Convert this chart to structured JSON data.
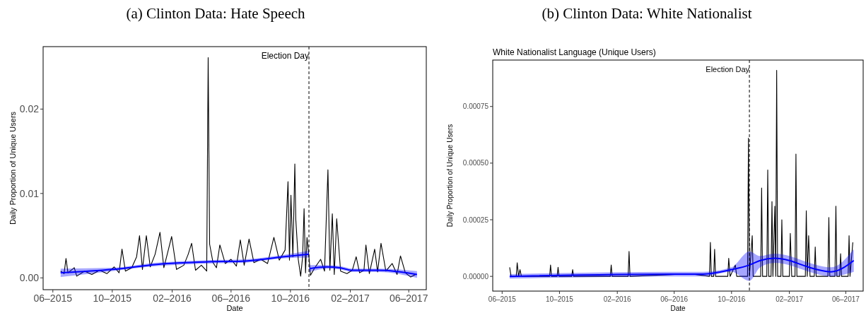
{
  "chart_data": [
    {
      "type": "line",
      "title": "(a) Clinton Data: Hate Speech",
      "xlabel": "Date",
      "ylabel": "Daily Proportion of Unique Users",
      "xlim": [
        "2015-05-12",
        "2017-07-07"
      ],
      "ylim": [
        -0.0014,
        0.0274
      ],
      "xticks": [
        {
          "value": "2015-06-01",
          "label": "06–2015"
        },
        {
          "value": "2015-10-01",
          "label": "10–2015"
        },
        {
          "value": "2016-02-01",
          "label": "02–2016"
        },
        {
          "value": "2016-06-01",
          "label": "06–2016"
        },
        {
          "value": "2016-10-01",
          "label": "10–2016"
        },
        {
          "value": "2017-02-01",
          "label": "02–2017"
        },
        {
          "value": "2017-06-01",
          "label": "06–2017"
        }
      ],
      "yticks": [
        {
          "value": 0,
          "label": "0.00"
        },
        {
          "value": 0.01,
          "label": "0.01"
        },
        {
          "value": 0.02,
          "label": "0.02"
        }
      ],
      "grid": false,
      "ref_lines": [
        {
          "axis": "x",
          "value": "2016-11-08",
          "label": "Election Day",
          "line_style": "dashed",
          "color": "#000000"
        }
      ],
      "series": [
        {
          "color": "#000000",
          "x": [
            "2015-06-17",
            "2015-06-24",
            "2015-06-28",
            "2015-07-02",
            "2015-07-15",
            "2015-07-20",
            "2015-08-05",
            "2015-08-20",
            "2015-09-05",
            "2015-09-20",
            "2015-10-05",
            "2015-10-15",
            "2015-10-21",
            "2015-10-28",
            "2015-11-10",
            "2015-11-20",
            "2015-11-26",
            "2015-12-02",
            "2015-12-10",
            "2015-12-18",
            "2015-12-28",
            "2016-01-07",
            "2016-01-15",
            "2016-01-25",
            "2016-01-31",
            "2016-02-10",
            "2016-02-25",
            "2016-03-05",
            "2016-03-12",
            "2016-03-20",
            "2016-04-01",
            "2016-04-12",
            "2016-04-15",
            "2016-04-18",
            "2016-04-25",
            "2016-05-02",
            "2016-05-09",
            "2016-05-20",
            "2016-06-01",
            "2016-06-12",
            "2016-06-20",
            "2016-06-28",
            "2016-07-08",
            "2016-07-18",
            "2016-08-01",
            "2016-08-15",
            "2016-08-28",
            "2016-09-08",
            "2016-09-20",
            "2016-09-26",
            "2016-09-29",
            "2016-10-02",
            "2016-10-06",
            "2016-10-10",
            "2016-10-12",
            "2016-10-17",
            "2016-10-22",
            "2016-10-26",
            "2016-10-29",
            "2016-11-01",
            "2016-11-04",
            "2016-11-08",
            "2016-11-11",
            "2016-11-20",
            "2016-12-02",
            "2016-12-10",
            "2016-12-17",
            "2016-12-21",
            "2016-12-26",
            "2016-12-30",
            "2017-01-04",
            "2017-01-12",
            "2017-01-25",
            "2017-02-05",
            "2017-02-13",
            "2017-02-20",
            "2017-03-01",
            "2017-03-05",
            "2017-03-12",
            "2017-03-23",
            "2017-03-29",
            "2017-04-05",
            "2017-04-15",
            "2017-04-28",
            "2017-05-08",
            "2017-05-15",
            "2017-05-25",
            "2017-06-05",
            "2017-06-15"
          ],
          "values": [
            0.0008,
            0.0005,
            0.0023,
            0.0006,
            0.0012,
            0.0002,
            0.0008,
            0.0004,
            0.0009,
            0.0005,
            0.0013,
            0.0006,
            0.0034,
            0.0008,
            0.0012,
            0.0025,
            0.005,
            0.001,
            0.005,
            0.0013,
            0.0028,
            0.0054,
            0.0012,
            0.0035,
            0.0049,
            0.001,
            0.0015,
            0.0028,
            0.0041,
            0.0009,
            0.0015,
            0.0008,
            0.0261,
            0.004,
            0.0018,
            0.0012,
            0.0039,
            0.0017,
            0.0022,
            0.0014,
            0.0045,
            0.0015,
            0.0046,
            0.0018,
            0.0022,
            0.0017,
            0.0048,
            0.0021,
            0.0033,
            0.0114,
            0.0021,
            0.0098,
            0.0025,
            0.0135,
            0.0069,
            0.0022,
            0.0002,
            0.0025,
            0.0082,
            0.0006,
            0.0048,
            0.0025,
            0.0003,
            0.0012,
            0.0022,
            0.0008,
            0.0128,
            0.0009,
            0.0076,
            0.0004,
            0.007,
            0.0008,
            0.0005,
            0.0009,
            0.0025,
            0.0006,
            0.0009,
            0.0039,
            0.0005,
            0.0034,
            0.0007,
            0.0041,
            0.0008,
            0.0017,
            0.0004,
            0.0026,
            0.0006,
            0.0001,
            0.0004
          ]
        },
        {
          "color": "#0000ff",
          "x": [
            "2015-06-17",
            "2015-10-01",
            "2016-01-01",
            "2016-04-15",
            "2016-07-01",
            "2016-09-15",
            "2016-11-08"
          ],
          "values": [
            0.0006,
            0.001,
            0.0016,
            0.0019,
            0.002,
            0.0025,
            0.0028
          ],
          "lower": [
            0.0001,
            0.0008,
            0.0014,
            0.0017,
            0.0018,
            0.0023,
            0.0024
          ],
          "upper": [
            0.0011,
            0.0012,
            0.0018,
            0.0021,
            0.0022,
            0.0027,
            0.0032
          ]
        },
        {
          "color": "#0000ff",
          "x": [
            "2016-11-09",
            "2016-12-15",
            "2017-01-10",
            "2017-02-05",
            "2017-04-01",
            "2017-06-18"
          ],
          "values": [
            0.0011,
            0.0013,
            0.0012,
            0.0009,
            0.0009,
            0.0004
          ],
          "lower": [
            0.0007,
            0.0011,
            0.001,
            0.0007,
            0.0007,
            0.0
          ],
          "upper": [
            0.0015,
            0.0015,
            0.0014,
            0.0011,
            0.0011,
            0.0008
          ]
        }
      ]
    },
    {
      "type": "line",
      "title": "(b) Clinton Data: White Nationalist",
      "subtitle": "White Nationalist Language (Unique Users)",
      "xlabel": "Date",
      "ylabel": "Daily Proportion of Unique Users",
      "xlim": [
        "2015-05-12",
        "2017-07-08"
      ],
      "ylim": [
        -6.5e-05,
        0.000955
      ],
      "xticks": [
        {
          "value": "2015-06-01",
          "label": "06–2015"
        },
        {
          "value": "2015-10-01",
          "label": "10–2015"
        },
        {
          "value": "2016-02-01",
          "label": "02–2016"
        },
        {
          "value": "2016-06-01",
          "label": "06–2016"
        },
        {
          "value": "2016-10-01",
          "label": "10–2016"
        },
        {
          "value": "2017-02-01",
          "label": "02–2017"
        },
        {
          "value": "2017-06-01",
          "label": "06–2017"
        }
      ],
      "yticks": [
        {
          "value": 0,
          "label": "0.00000"
        },
        {
          "value": 0.00025,
          "label": "0.00025"
        },
        {
          "value": 0.0005,
          "label": "0.00050"
        },
        {
          "value": 0.00075,
          "label": "0.00075"
        }
      ],
      "grid": false,
      "ref_lines": [
        {
          "axis": "x",
          "value": "2016-11-08",
          "label": "Election Day",
          "line_style": "dashed",
          "color": "#000000"
        }
      ],
      "series": [
        {
          "color": "#000000",
          "x": [
            "2015-06-17",
            "2015-06-20",
            "2015-07-01",
            "2015-07-03",
            "2015-07-06",
            "2015-07-09",
            "2015-07-12",
            "2015-09-10",
            "2015-09-12",
            "2015-09-14",
            "2015-09-26",
            "2015-09-28",
            "2015-09-30",
            "2015-10-27",
            "2015-10-29",
            "2015-10-31",
            "2016-01-17",
            "2016-01-19",
            "2016-01-21",
            "2016-02-24",
            "2016-02-26",
            "2016-02-28",
            "2016-06-20",
            "2016-07-10",
            "2016-08-15",
            "2016-08-17",
            "2016-08-19",
            "2016-08-24",
            "2016-08-26",
            "2016-08-28",
            "2016-09-23",
            "2016-09-25",
            "2016-09-28",
            "2016-10-09",
            "2016-10-12",
            "2016-11-04",
            "2016-11-06",
            "2016-11-08",
            "2016-11-14",
            "2016-11-16",
            "2016-12-02",
            "2016-12-04",
            "2016-12-06",
            "2016-12-15",
            "2016-12-17",
            "2016-12-19",
            "2016-12-24",
            "2016-12-26",
            "2016-12-28",
            "2017-01-01",
            "2017-01-03",
            "2017-01-05",
            "2017-01-07",
            "2017-01-14",
            "2017-01-16",
            "2017-01-18",
            "2017-02-01",
            "2017-02-03",
            "2017-02-06",
            "2017-02-13",
            "2017-02-15",
            "2017-02-17",
            "2017-03-07",
            "2017-03-09",
            "2017-03-11",
            "2017-03-14",
            "2017-03-17",
            "2017-03-26",
            "2017-03-28",
            "2017-03-30",
            "2017-04-24",
            "2017-04-26",
            "2017-04-28",
            "2017-05-09",
            "2017-05-11",
            "2017-05-13",
            "2017-05-19",
            "2017-05-21",
            "2017-05-23",
            "2017-06-06",
            "2017-06-08",
            "2017-06-10",
            "2017-06-16"
          ],
          "values": [
            4e-05,
            0,
            0,
            6e-05,
            0,
            3e-05,
            0,
            0,
            5e-05,
            0,
            0,
            4e-05,
            0,
            0,
            3e-05,
            0,
            0,
            5e-05,
            0,
            0,
            0.00011,
            0,
            1e-05,
            1e-05,
            0,
            0.00015,
            0,
            0,
            0.00012,
            0,
            0,
            8e-05,
            0,
            5e-05,
            0,
            0,
            0.00061,
            0,
            0.00018,
            0,
            0,
            0.00039,
            0,
            0,
            0.00047,
            0,
            0,
            0.00033,
            0,
            0.00031,
            0,
            0.00091,
            0,
            0,
            0.00025,
            0,
            0,
            0.00019,
            0,
            0,
            0.00054,
            0,
            0,
            0.00029,
            0,
            0.00018,
            0,
            0,
            0.00013,
            0,
            0,
            0.00026,
            0,
            0,
            0.00031,
            0,
            0,
            0.0001,
            0,
            0,
            0.00018,
            0,
            0.00015
          ]
        },
        {
          "color": "#0000ff",
          "x": [
            "2015-06-17",
            "2016-06-01",
            "2016-08-01",
            "2016-10-01",
            "2016-11-08",
            "2016-12-01",
            "2017-01-01",
            "2017-02-01",
            "2017-03-01",
            "2017-04-01",
            "2017-05-01",
            "2017-06-18"
          ],
          "values": [
            0,
            1e-05,
            1e-05,
            3e-05,
            5e-05,
            7e-05,
            8e-05,
            7e-05,
            5e-05,
            3e-05,
            2e-05,
            7e-05
          ],
          "lower": [
            -1e-05,
            0,
            0,
            2e-05,
            -2e-05,
            4e-05,
            6e-05,
            5e-05,
            3e-05,
            1e-05,
            0,
            2e-05
          ],
          "upper": [
            1e-05,
            2e-05,
            2e-05,
            4e-05,
            0.00011,
            9e-05,
            0.0001,
            9e-05,
            7e-05,
            5e-05,
            4e-05,
            0.00012
          ]
        }
      ]
    }
  ]
}
